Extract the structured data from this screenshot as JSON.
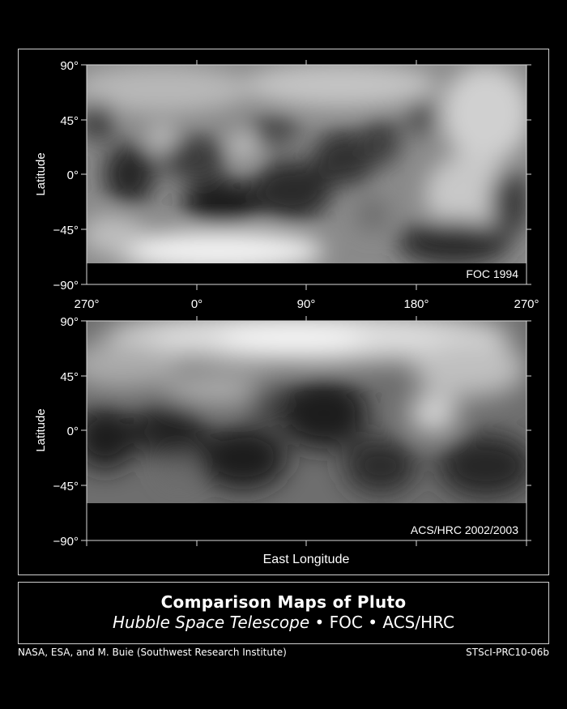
{
  "maps": [
    {
      "label": "FOC 1994",
      "y_axis_label": "Latitude",
      "lat_ticks": [
        "90°",
        "45°",
        "0°",
        "−45°",
        "−90°"
      ],
      "lon_ticks": [
        "270°",
        "0°",
        "90°",
        "180°",
        "270°"
      ]
    },
    {
      "label": "ACS/HRC 2002/2003",
      "y_axis_label": "Latitude",
      "lat_ticks": [
        "90°",
        "45°",
        "0°",
        "−45°",
        "−90°"
      ]
    }
  ],
  "x_axis_label": "East Longitude",
  "title": {
    "main": "Comparison Maps of Pluto",
    "telescope": "Hubble Space Telescope",
    "sep1": " • FOC • ",
    "instrument": "ACS/HRC"
  },
  "credits": {
    "left": "NASA, ESA, and M. Buie (Southwest Research Institute)",
    "right": "STScI-PRC10-06b"
  }
}
